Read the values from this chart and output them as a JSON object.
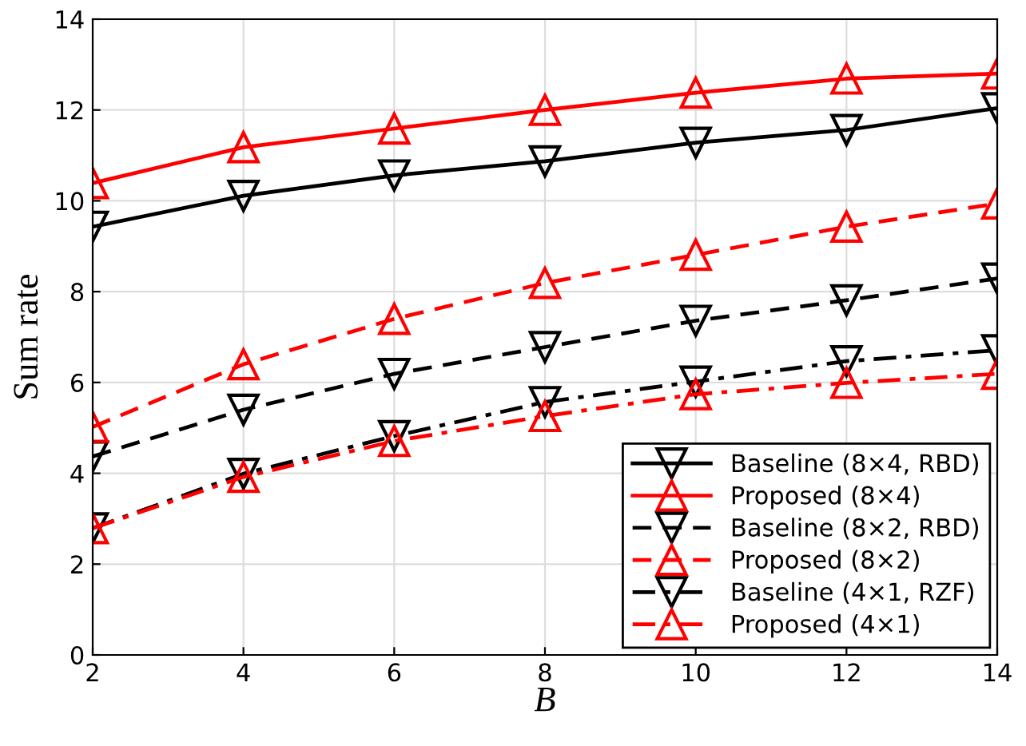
{
  "chart_data": {
    "type": "line",
    "xlabel": "B",
    "ylabel": "Sum rate",
    "x": [
      2,
      4,
      6,
      8,
      10,
      12,
      14
    ],
    "xlim": [
      2,
      14
    ],
    "xticks": [
      2,
      4,
      6,
      8,
      10,
      12,
      14
    ],
    "ylim": [
      0,
      14
    ],
    "yticks": [
      0,
      2,
      4,
      6,
      8,
      10,
      12,
      14
    ],
    "grid": true,
    "legend": "bottom right",
    "series": [
      {
        "name": "Baseline (8×4, RBD)",
        "color": "#000000",
        "marker": "triangle_down",
        "line_style": "solid",
        "values": [
          9.43,
          10.11,
          10.56,
          10.87,
          11.28,
          11.56,
          12.04
        ]
      },
      {
        "name": "Proposed (8×4)",
        "color": "#ff0000",
        "marker": "triangle",
        "line_style": "solid",
        "values": [
          10.39,
          11.18,
          11.59,
          12.0,
          12.38,
          12.69,
          12.8
        ]
      },
      {
        "name": "Baseline (8×2, RBD)",
        "color": "#000000",
        "marker": "triangle_down",
        "line_style": "dashed",
        "values": [
          4.37,
          5.4,
          6.19,
          6.78,
          7.36,
          7.81,
          8.29
        ]
      },
      {
        "name": "Proposed (8×2)",
        "color": "#ff0000",
        "marker": "triangle",
        "line_style": "dashed",
        "values": [
          5.02,
          6.4,
          7.4,
          8.19,
          8.81,
          9.43,
          9.94
        ]
      },
      {
        "name": "Baseline (4×1, RZF)",
        "color": "#000000",
        "marker": "triangle_down",
        "line_style": "dashdot",
        "values": [
          2.79,
          3.99,
          4.82,
          5.57,
          6.02,
          6.47,
          6.71
        ]
      },
      {
        "name": "Proposed (4×1)",
        "color": "#ff0000",
        "marker": "triangle",
        "line_style": "dashdot",
        "values": [
          2.79,
          3.92,
          4.71,
          5.26,
          5.74,
          5.99,
          6.19
        ]
      }
    ]
  }
}
